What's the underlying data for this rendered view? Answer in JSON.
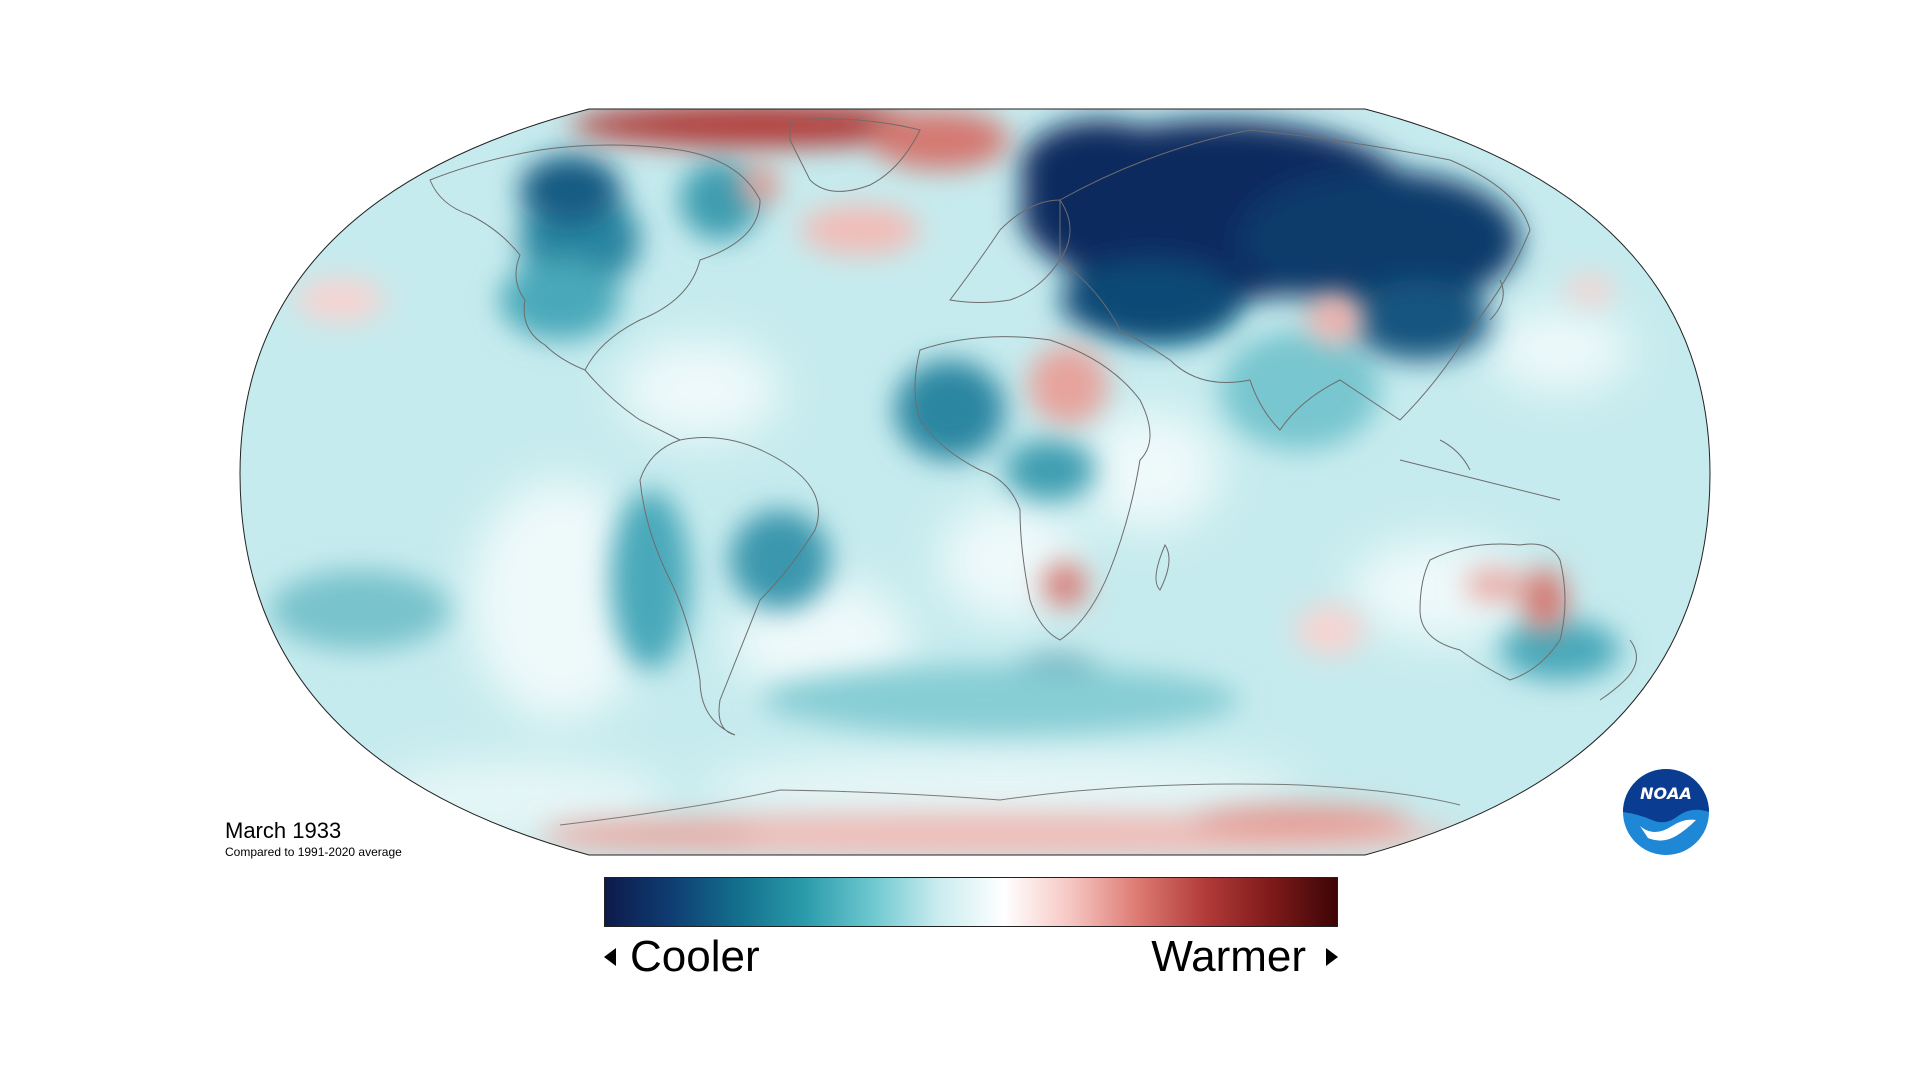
{
  "map": {
    "title": "March 1933",
    "subtitle": "Compared to 1991-2020 average"
  },
  "legend": {
    "cooler_label": "Cooler",
    "warmer_label": "Warmer",
    "colors": [
      "#0d1a4a",
      "#0f3d73",
      "#136f8c",
      "#2a9bab",
      "#6cc7cf",
      "#c9ecef",
      "#ffffff",
      "#f6c6c2",
      "#dd7b73",
      "#b23c39",
      "#7f1a1a",
      "#3d0505"
    ]
  },
  "logo": {
    "name": "NOAA",
    "colors": [
      "#0a3d91",
      "#1e88d6",
      "#ffffff"
    ]
  },
  "anomaly": {
    "background": "#c6ebee",
    "cool_strong": "#0d2a5e",
    "cool_mid": "#1f7a92",
    "cool_light": "#67bfca",
    "warm_light": "#f6c9c5",
    "warm_mid": "#d47871",
    "warm_strong": "#b13b38"
  }
}
